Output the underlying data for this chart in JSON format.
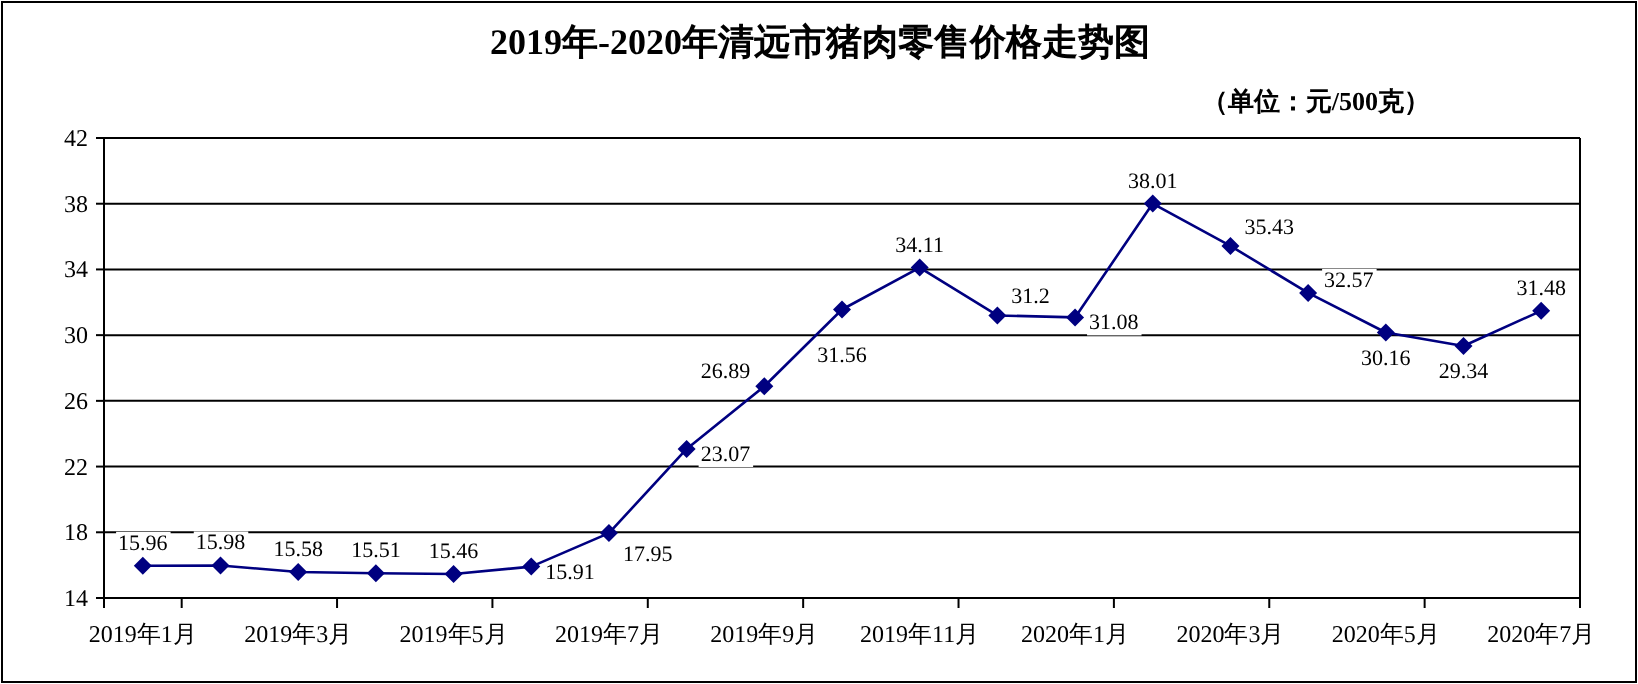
{
  "chart_data": {
    "type": "line",
    "title": "2019年-2020年清远市猪肉零售价格走势图",
    "annotations": [
      "（单位：元/500克）"
    ],
    "categories": [
      "2019年1月",
      null,
      "2019年3月",
      null,
      "2019年5月",
      null,
      "2019年7月",
      null,
      "2019年9月",
      null,
      "2019年11月",
      null,
      "2020年1月",
      null,
      "2020年3月",
      null,
      "2020年5月",
      null,
      "2020年7月"
    ],
    "series": [
      {
        "color": "#000080",
        "values": [
          15.96,
          15.98,
          15.58,
          15.51,
          15.46,
          15.91,
          17.95,
          23.07,
          26.89,
          31.56,
          34.11,
          31.2,
          31.08,
          38.01,
          35.43,
          32.57,
          30.16,
          29.34,
          31.48
        ]
      }
    ],
    "ylim": [
      14,
      42
    ],
    "yticks": [
      14,
      18,
      22,
      26,
      30,
      34,
      38,
      42
    ],
    "grid": "y",
    "marker": "diamond",
    "line_style": "solid",
    "data_labels": true
  }
}
